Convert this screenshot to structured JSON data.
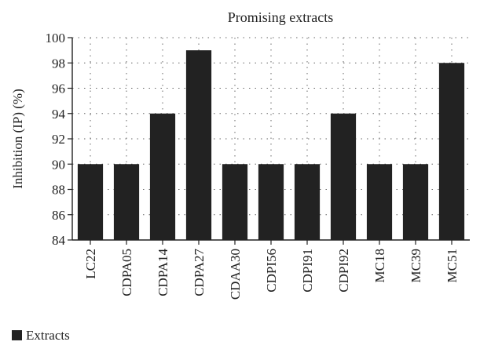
{
  "chart_data": {
    "type": "bar",
    "title": "Promising extracts",
    "ylabel": "Inhibition (IP) (%)",
    "xlabel": "",
    "ylim": [
      84,
      100
    ],
    "yticks": [
      84,
      86,
      88,
      90,
      92,
      94,
      96,
      98,
      100
    ],
    "grid": true,
    "legend_position": "bottom-left",
    "categories": [
      "LC22",
      "CDPA05",
      "CDPA14",
      "CDPA27",
      "CDAA30",
      "CDPI56",
      "CDPI91",
      "CDPI92",
      "MC18",
      "MC39",
      "MC51"
    ],
    "series": [
      {
        "name": "Extracts",
        "color": "#222222",
        "values": [
          90,
          90,
          94,
          99,
          90,
          90,
          90,
          94,
          90,
          90,
          98
        ]
      }
    ]
  }
}
